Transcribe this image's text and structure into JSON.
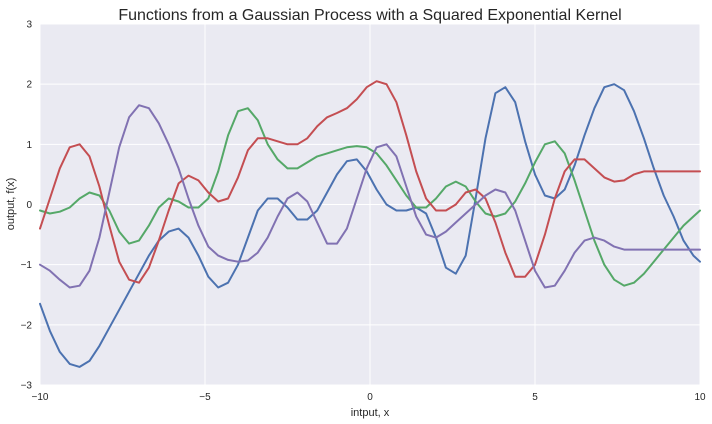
{
  "chart_data": {
    "type": "line",
    "title": "Functions from a Gaussian Process with a Squared Exponential Kernel",
    "xlabel": "intput, x",
    "ylabel": "output, f(x)",
    "xlim": [
      -10,
      10
    ],
    "ylim": [
      -3,
      3
    ],
    "xticks": [
      -10,
      -5,
      0,
      5,
      10
    ],
    "yticks": [
      -3,
      -2,
      -1,
      0,
      1,
      2,
      3
    ],
    "grid": true,
    "plot_background": "#eaeaf2",
    "grid_color": "#ffffff",
    "series": [
      {
        "color": "#4c72b0",
        "x": [
          -10,
          -9.7,
          -9.4,
          -9.1,
          -8.8,
          -8.5,
          -8.2,
          -7.9,
          -7.6,
          -7.3,
          -7.0,
          -6.7,
          -6.4,
          -6.1,
          -5.8,
          -5.5,
          -5.2,
          -4.9,
          -4.6,
          -4.3,
          -4.0,
          -3.7,
          -3.4,
          -3.1,
          -2.8,
          -2.5,
          -2.2,
          -1.9,
          -1.6,
          -1.3,
          -1.0,
          -0.7,
          -0.4,
          -0.1,
          0.2,
          0.5,
          0.8,
          1.1,
          1.4,
          1.7,
          2.0,
          2.3,
          2.6,
          2.9,
          3.2,
          3.5,
          3.8,
          4.1,
          4.4,
          4.7,
          5.0,
          5.3,
          5.6,
          5.9,
          6.2,
          6.5,
          6.8,
          7.1,
          7.4,
          7.7,
          8.0,
          8.3,
          8.6,
          8.9,
          9.2,
          9.5,
          9.8,
          10.0
        ],
        "y": [
          -1.65,
          -2.1,
          -2.45,
          -2.65,
          -2.7,
          -2.6,
          -2.35,
          -2.05,
          -1.75,
          -1.45,
          -1.15,
          -0.85,
          -0.6,
          -0.45,
          -0.4,
          -0.55,
          -0.85,
          -1.2,
          -1.38,
          -1.3,
          -1.0,
          -0.55,
          -0.1,
          0.1,
          0.1,
          -0.05,
          -0.25,
          -0.25,
          -0.1,
          0.2,
          0.5,
          0.72,
          0.75,
          0.55,
          0.25,
          0.0,
          -0.1,
          -0.1,
          -0.05,
          -0.15,
          -0.55,
          -1.05,
          -1.15,
          -0.85,
          0.1,
          1.1,
          1.85,
          1.95,
          1.7,
          1.05,
          0.5,
          0.15,
          0.1,
          0.25,
          0.65,
          1.15,
          1.6,
          1.95,
          2.0,
          1.9,
          1.55,
          1.1,
          0.6,
          0.15,
          -0.2,
          -0.6,
          -0.85,
          -0.95
        ]
      },
      {
        "color": "#55a868",
        "x": [
          -10,
          -9.7,
          -9.4,
          -9.1,
          -8.8,
          -8.5,
          -8.2,
          -7.9,
          -7.6,
          -7.3,
          -7.0,
          -6.7,
          -6.4,
          -6.1,
          -5.8,
          -5.5,
          -5.2,
          -4.9,
          -4.6,
          -4.3,
          -4.0,
          -3.7,
          -3.4,
          -3.1,
          -2.8,
          -2.5,
          -2.2,
          -1.9,
          -1.6,
          -1.3,
          -1.0,
          -0.7,
          -0.4,
          -0.1,
          0.2,
          0.5,
          0.8,
          1.1,
          1.4,
          1.7,
          2.0,
          2.3,
          2.6,
          2.9,
          3.2,
          3.5,
          3.8,
          4.1,
          4.4,
          4.7,
          5.0,
          5.3,
          5.6,
          5.9,
          6.2,
          6.5,
          6.8,
          7.1,
          7.4,
          7.7,
          8.0,
          8.3,
          8.6,
          8.9,
          9.2,
          9.5,
          9.8,
          10.0
        ],
        "y": [
          -0.1,
          -0.15,
          -0.12,
          -0.05,
          0.1,
          0.2,
          0.15,
          -0.1,
          -0.45,
          -0.65,
          -0.6,
          -0.35,
          -0.05,
          0.1,
          0.05,
          -0.05,
          -0.05,
          0.1,
          0.55,
          1.15,
          1.55,
          1.6,
          1.4,
          1.0,
          0.75,
          0.6,
          0.6,
          0.7,
          0.8,
          0.85,
          0.9,
          0.95,
          0.97,
          0.95,
          0.85,
          0.65,
          0.4,
          0.15,
          -0.05,
          -0.05,
          0.1,
          0.3,
          0.38,
          0.3,
          0.05,
          -0.15,
          -0.2,
          -0.15,
          0.05,
          0.35,
          0.7,
          1.0,
          1.05,
          0.85,
          0.4,
          -0.1,
          -0.6,
          -1.0,
          -1.25,
          -1.35,
          -1.3,
          -1.15,
          -0.95,
          -0.75,
          -0.55,
          -0.35,
          -0.2,
          -0.1
        ]
      },
      {
        "color": "#c44e52",
        "x": [
          -10,
          -9.7,
          -9.4,
          -9.1,
          -8.8,
          -8.5,
          -8.2,
          -7.9,
          -7.6,
          -7.3,
          -7.0,
          -6.7,
          -6.4,
          -6.1,
          -5.8,
          -5.5,
          -5.2,
          -4.9,
          -4.6,
          -4.3,
          -4.0,
          -3.7,
          -3.4,
          -3.1,
          -2.8,
          -2.5,
          -2.2,
          -1.9,
          -1.6,
          -1.3,
          -1.0,
          -0.7,
          -0.4,
          -0.1,
          0.2,
          0.5,
          0.8,
          1.1,
          1.4,
          1.7,
          2.0,
          2.3,
          2.6,
          2.9,
          3.2,
          3.5,
          3.8,
          4.1,
          4.4,
          4.7,
          5.0,
          5.3,
          5.6,
          5.9,
          6.2,
          6.5,
          6.8,
          7.1,
          7.4,
          7.7,
          8.0,
          8.3,
          8.6,
          8.9,
          9.2,
          9.5,
          9.8,
          10.0
        ],
        "y": [
          -0.4,
          0.1,
          0.6,
          0.95,
          1.0,
          0.8,
          0.3,
          -0.35,
          -0.95,
          -1.25,
          -1.3,
          -1.05,
          -0.6,
          -0.1,
          0.35,
          0.48,
          0.4,
          0.2,
          0.05,
          0.1,
          0.45,
          0.9,
          1.1,
          1.1,
          1.05,
          1.0,
          1.0,
          1.1,
          1.3,
          1.45,
          1.52,
          1.6,
          1.75,
          1.95,
          2.05,
          2.0,
          1.7,
          1.15,
          0.55,
          0.1,
          -0.1,
          -0.1,
          0.0,
          0.2,
          0.25,
          0.1,
          -0.3,
          -0.8,
          -1.2,
          -1.2,
          -1.0,
          -0.5,
          0.1,
          0.55,
          0.75,
          0.75,
          0.6,
          0.45,
          0.38,
          0.4,
          0.5,
          0.55,
          0.55,
          0.55,
          0.55,
          0.55,
          0.55,
          0.55
        ]
      },
      {
        "color": "#8172b2",
        "x": [
          -10,
          -9.7,
          -9.4,
          -9.1,
          -8.8,
          -8.5,
          -8.2,
          -7.9,
          -7.6,
          -7.3,
          -7.0,
          -6.7,
          -6.4,
          -6.1,
          -5.8,
          -5.5,
          -5.2,
          -4.9,
          -4.6,
          -4.3,
          -4.0,
          -3.7,
          -3.4,
          -3.1,
          -2.8,
          -2.5,
          -2.2,
          -1.9,
          -1.6,
          -1.3,
          -1.0,
          -0.7,
          -0.4,
          -0.1,
          0.2,
          0.5,
          0.8,
          1.1,
          1.4,
          1.7,
          2.0,
          2.3,
          2.6,
          2.9,
          3.2,
          3.5,
          3.8,
          4.1,
          4.4,
          4.7,
          5.0,
          5.3,
          5.6,
          5.9,
          6.2,
          6.5,
          6.8,
          7.1,
          7.4,
          7.7,
          8.0,
          8.3,
          8.6,
          8.9,
          9.2,
          9.5,
          9.8,
          10.0
        ],
        "y": [
          -1.0,
          -1.1,
          -1.25,
          -1.38,
          -1.35,
          -1.1,
          -0.55,
          0.2,
          0.95,
          1.45,
          1.65,
          1.6,
          1.35,
          1.0,
          0.6,
          0.1,
          -0.35,
          -0.7,
          -0.85,
          -0.92,
          -0.95,
          -0.93,
          -0.8,
          -0.55,
          -0.2,
          0.1,
          0.2,
          0.05,
          -0.3,
          -0.65,
          -0.65,
          -0.4,
          0.1,
          0.6,
          0.95,
          1.0,
          0.8,
          0.3,
          -0.2,
          -0.5,
          -0.55,
          -0.45,
          -0.3,
          -0.15,
          0.0,
          0.15,
          0.25,
          0.2,
          -0.1,
          -0.6,
          -1.1,
          -1.38,
          -1.35,
          -1.1,
          -0.8,
          -0.6,
          -0.55,
          -0.6,
          -0.7,
          -0.75,
          -0.75,
          -0.75,
          -0.75,
          -0.75,
          -0.75,
          -0.75,
          -0.75,
          -0.75
        ]
      }
    ]
  }
}
